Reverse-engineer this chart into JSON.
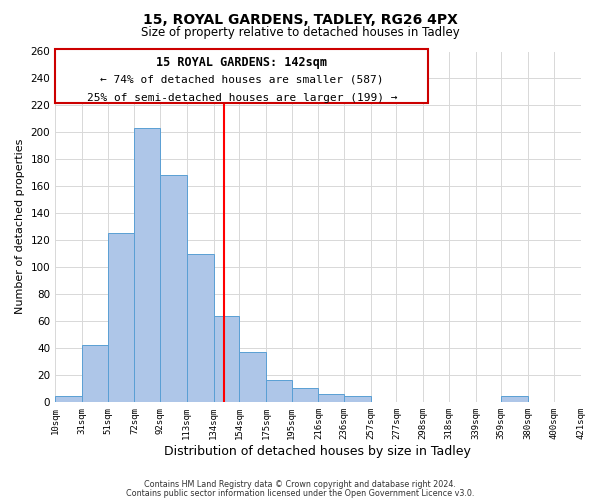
{
  "title": "15, ROYAL GARDENS, TADLEY, RG26 4PX",
  "subtitle": "Size of property relative to detached houses in Tadley",
  "xlabel": "Distribution of detached houses by size in Tadley",
  "ylabel": "Number of detached properties",
  "bar_edges": [
    10,
    31,
    51,
    72,
    92,
    113,
    134,
    154,
    175,
    195,
    216,
    236,
    257,
    277,
    298,
    318,
    339,
    359,
    380,
    400,
    421
  ],
  "bar_heights": [
    4,
    42,
    125,
    203,
    168,
    110,
    64,
    37,
    16,
    10,
    6,
    4,
    0,
    0,
    0,
    0,
    0,
    4,
    0,
    0
  ],
  "tick_labels": [
    "10sqm",
    "31sqm",
    "51sqm",
    "72sqm",
    "92sqm",
    "113sqm",
    "134sqm",
    "154sqm",
    "175sqm",
    "195sqm",
    "216sqm",
    "236sqm",
    "257sqm",
    "277sqm",
    "298sqm",
    "318sqm",
    "339sqm",
    "359sqm",
    "380sqm",
    "400sqm",
    "421sqm"
  ],
  "bar_color": "#aec6e8",
  "bar_edge_color": "#5a9fd4",
  "reference_line_x": 142,
  "reference_line_color": "red",
  "ylim": [
    0,
    260
  ],
  "yticks": [
    0,
    20,
    40,
    60,
    80,
    100,
    120,
    140,
    160,
    180,
    200,
    220,
    240,
    260
  ],
  "annotation_title": "15 ROYAL GARDENS: 142sqm",
  "annotation_line1": "← 74% of detached houses are smaller (587)",
  "annotation_line2": "25% of semi-detached houses are larger (199) →",
  "footer1": "Contains HM Land Registry data © Crown copyright and database right 2024.",
  "footer2": "Contains public sector information licensed under the Open Government Licence v3.0.",
  "bg_color": "#ffffff",
  "grid_color": "#d8d8d8"
}
